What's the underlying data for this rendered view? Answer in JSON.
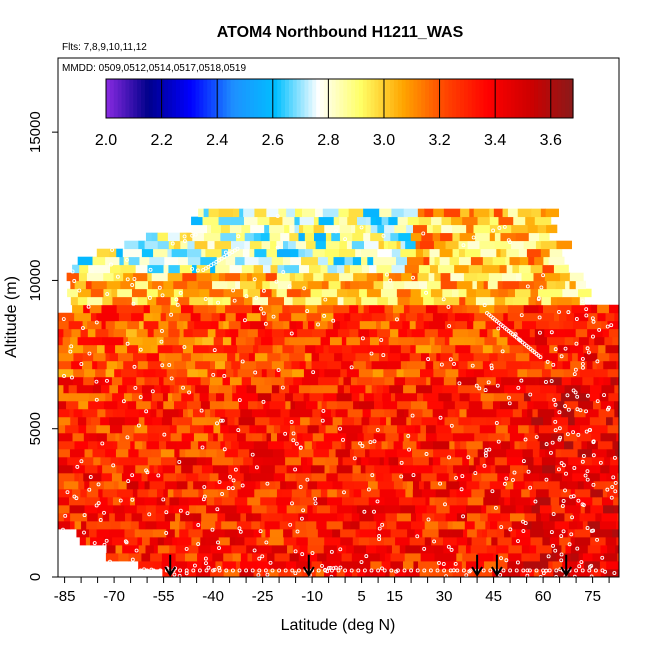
{
  "chart_data": {
    "type": "heatmap",
    "title": "ATOM4 Northbound H1211_WAS",
    "subtitle_flights": "Flts: 7,8,9,10,11,12",
    "subtitle_dates": "MMDD: 0509,0512,0514,0517,0518,0519",
    "xlabel": "Latitude (deg N)",
    "ylabel": "Altitude (m)",
    "xlim": [
      -87,
      83
    ],
    "ylim": [
      0,
      17500
    ],
    "x_tick_labels": [
      "-85",
      "-70",
      "-55",
      "-40",
      "-25",
      "-10",
      "5",
      "15",
      "30",
      "45",
      "60",
      "75"
    ],
    "x_tick_values": [
      -85,
      -70,
      -55,
      -40,
      -25,
      -10,
      5,
      15,
      30,
      45,
      60,
      75
    ],
    "y_tick_labels": [
      "0",
      "5000",
      "10000",
      "15000"
    ],
    "y_tick_values": [
      0,
      5000,
      10000,
      15000
    ],
    "colorbar": {
      "min": 2.0,
      "max": 3.68,
      "tick_labels": [
        "2.0",
        "2.2",
        "2.4",
        "2.6",
        "2.8",
        "3.0",
        "3.2",
        "3.4",
        "3.6"
      ],
      "tick_values": [
        2.0,
        2.2,
        2.4,
        2.6,
        2.8,
        3.0,
        3.2,
        3.4,
        3.6
      ],
      "colors": [
        "#8a2be2",
        "#00008b",
        "#0000ff",
        "#1e90ff",
        "#00bfff",
        "#ffffff",
        "#ffff66",
        "#ffa500",
        "#ff4500",
        "#ff0000",
        "#cd0000",
        "#8b1a1a"
      ]
    },
    "arrows_latitude": [
      -53,
      -11,
      40,
      46,
      67
    ],
    "value_estimates": {
      "upper_troposphere_above_9500m": "2.8-3.0",
      "mid_troposphere": "3.2-3.4",
      "lower_troposphere": "3.3-3.6"
    }
  }
}
